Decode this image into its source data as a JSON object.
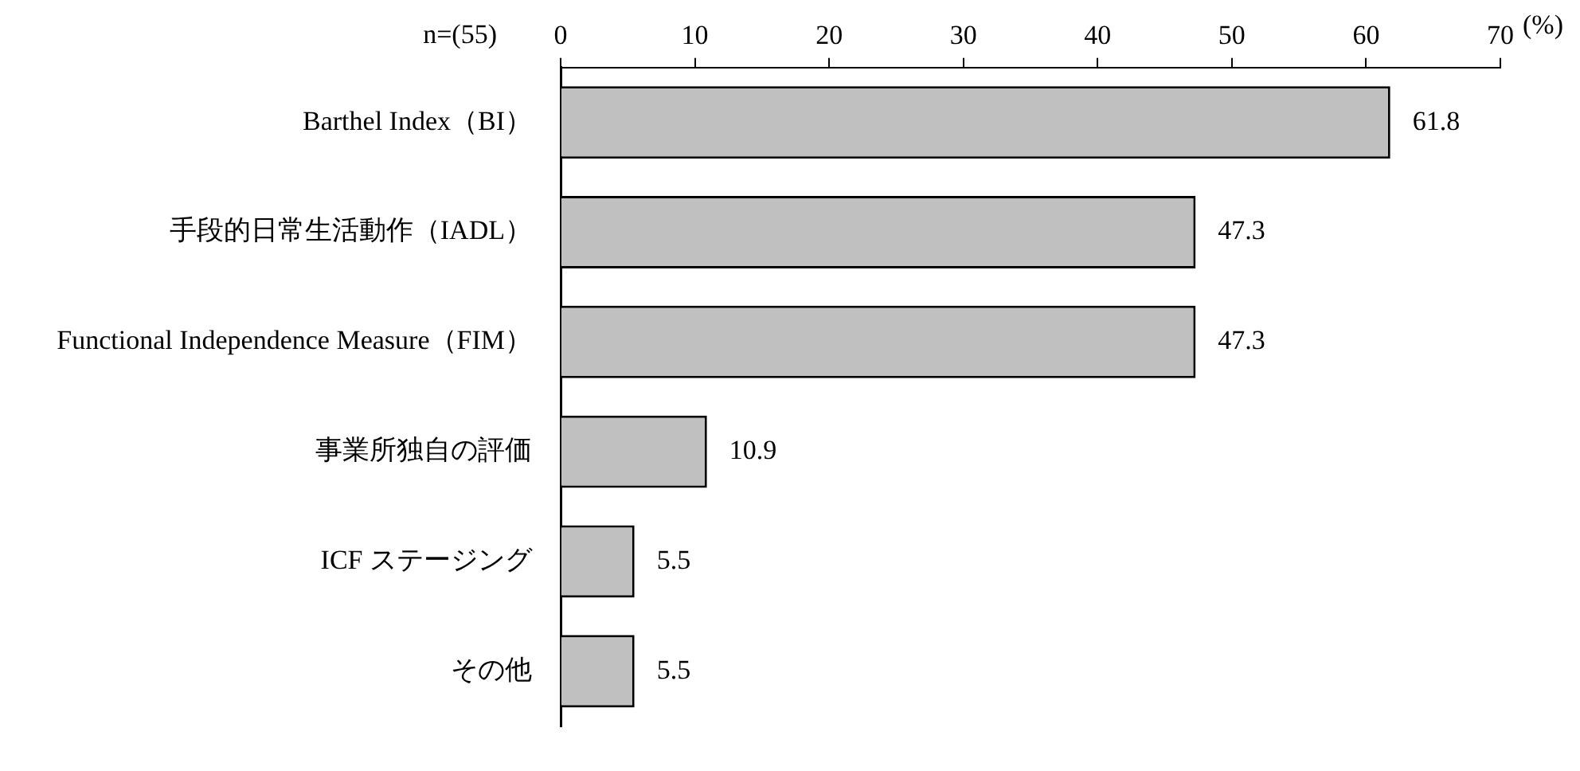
{
  "chart_data": {
    "type": "bar",
    "orientation": "horizontal",
    "xlabel": "(%)",
    "annotations": [
      "n=(55)"
    ],
    "categories": [
      "Barthel Index（BI）",
      "手段的日常生活動作（IADL）",
      "Functional Independence Measure（FIM）",
      "事業所独自の評価",
      "ICF ステージング",
      "その他"
    ],
    "values": [
      61.8,
      47.3,
      47.3,
      10.9,
      5.5,
      5.5
    ],
    "color": "#c0c0c0",
    "xlim": [
      0,
      70
    ],
    "xticks": [
      0,
      10,
      20,
      30,
      40,
      50,
      60,
      70
    ],
    "grid": false,
    "legend": false,
    "data_labels": true
  }
}
